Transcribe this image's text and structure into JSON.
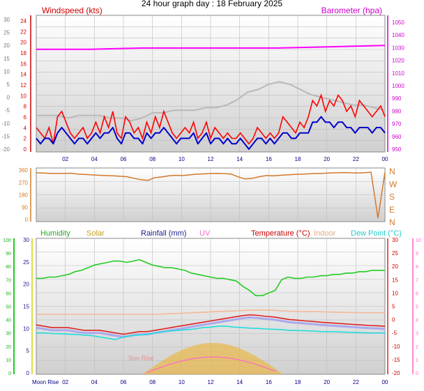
{
  "title": "24 hour graph day : 18 February 2025",
  "x_ticks": [
    "02",
    "04",
    "06",
    "08",
    "10",
    "12",
    "14",
    "16",
    "18",
    "20",
    "22",
    "00"
  ],
  "moon_rise_label": "Moon Rise",
  "sun_rise_label": "Sun Rise",
  "colors": {
    "windspeed": "#ff0000",
    "average": "#0000cc",
    "gray_series": "#b8b8b8",
    "barometer": "#ff00ff",
    "direction": "#d27a2a",
    "humidity": "#22cc22",
    "solar": "#f0b020",
    "rainfall": "#1a1a8c",
    "uv": "#ff66cc",
    "temperature": "#dd2222",
    "indoor": "#f5b89a",
    "dew_point": "#22dddd",
    "temp_light": "#aaaaee"
  },
  "chart_data": [
    {
      "type": "line",
      "name": "wind-panel",
      "left_axis_label": "Windspeed (kts)",
      "right_axis_label": "Barometer (hpa)",
      "left_ticks_wind": [
        "24",
        "22",
        "20",
        "18",
        "16",
        "14",
        "12",
        "10",
        "8",
        "6",
        "4",
        "2",
        "0"
      ],
      "left_ticks_outer": [
        "30",
        "25",
        "20",
        "15",
        "10",
        "5",
        "0",
        "-5",
        "-10",
        "-15",
        "-20"
      ],
      "right_ticks": [
        "1050",
        "1040",
        "1030",
        "1020",
        "1010",
        "1000",
        "990",
        "980",
        "970",
        "960",
        "950"
      ],
      "x_hours": [
        0,
        2,
        4,
        6,
        8,
        10,
        12,
        14,
        16,
        18,
        20,
        22,
        24
      ],
      "wind_speed": [
        4,
        3,
        2,
        4,
        1,
        6,
        7,
        5,
        3,
        2,
        3,
        4,
        2,
        3,
        5,
        3,
        6,
        4,
        7,
        3,
        2,
        6,
        5,
        3,
        4,
        2,
        5,
        3,
        6,
        4,
        7,
        5,
        3,
        2,
        3,
        4,
        3,
        5,
        2,
        3,
        5,
        2,
        4,
        3,
        2,
        3,
        2,
        2,
        3,
        2,
        1,
        2,
        4,
        3,
        2,
        3,
        2,
        3,
        6,
        5,
        4,
        3,
        5,
        4,
        6,
        9,
        8,
        10,
        7,
        9,
        8,
        10,
        9,
        7,
        8,
        6,
        9,
        8,
        7,
        6,
        7,
        8,
        6
      ],
      "wind_avg": [
        2,
        1,
        2,
        2,
        1,
        3,
        4,
        3,
        2,
        1,
        2,
        2,
        1,
        2,
        3,
        2,
        3,
        3,
        4,
        2,
        1,
        3,
        3,
        2,
        2,
        1,
        3,
        2,
        3,
        3,
        4,
        3,
        2,
        1,
        2,
        2,
        2,
        3,
        1,
        2,
        3,
        1,
        2,
        2,
        1,
        2,
        1,
        1,
        2,
        1,
        0,
        1,
        2,
        2,
        1,
        2,
        1,
        2,
        3,
        3,
        2,
        2,
        3,
        3,
        3,
        5,
        5,
        6,
        5,
        5,
        4,
        5,
        5,
        4,
        4,
        3,
        4,
        4,
        4,
        3,
        4,
        4,
        3
      ],
      "gray": [
        -7,
        -7,
        -7,
        -8,
        -7,
        -7,
        -7,
        -8,
        -8,
        -9,
        -8,
        -6,
        -6,
        -5,
        -5,
        -5,
        -4,
        -4,
        -3,
        -1,
        2,
        3,
        5,
        6,
        5,
        3,
        1,
        0,
        -1,
        -2,
        -3,
        -3,
        -4,
        -5
      ],
      "barometer": [
        1027,
        1027,
        1027,
        1027.5,
        1028,
        1028,
        1028,
        1028,
        1028,
        1028,
        1028.5,
        1029,
        1029.5,
        1030
      ]
    },
    {
      "type": "scatter",
      "name": "direction-panel",
      "left_ticks": [
        "360",
        "270",
        "180",
        "90",
        "0"
      ],
      "right_compass": [
        "N",
        "W",
        "S",
        "E",
        "N"
      ],
      "direction": [
        340,
        338,
        336,
        335,
        336,
        337,
        330,
        328,
        325,
        322,
        320,
        318,
        315,
        312,
        300,
        290,
        285,
        305,
        310,
        318,
        322,
        320,
        325,
        330,
        332,
        335,
        336,
        334,
        330,
        310,
        295,
        300,
        312,
        320,
        318,
        322,
        325,
        328,
        330,
        332,
        335,
        336,
        338,
        340,
        342,
        340,
        338,
        340,
        345,
        10,
        345
      ]
    },
    {
      "type": "line",
      "name": "temperature-panel",
      "legend": [
        "Humidity",
        "Solar",
        "Rainfall (mm)",
        "UV",
        "Temperature (°C)",
        "Indoor",
        "Dew Point (°C)"
      ],
      "humidity_ticks": [
        "100",
        "90",
        "80",
        "70",
        "60",
        "50",
        "40",
        "30",
        "20",
        "10",
        "0"
      ],
      "rainfall_ticks": [
        "30",
        "25",
        "20",
        "15",
        "10",
        "5",
        "0"
      ],
      "temp_ticks": [
        "30",
        "25",
        "20",
        "15",
        "10",
        "5",
        "0",
        "-5",
        "-10",
        "-15",
        "-20"
      ],
      "uv_ticks": [
        "10",
        "9",
        "8",
        "7",
        "6",
        "5",
        "4",
        "3",
        "2",
        "1",
        "0"
      ],
      "humidity": [
        71,
        71,
        72,
        72,
        73,
        74,
        76,
        77,
        79,
        81,
        82,
        83,
        84,
        84,
        83,
        84,
        85,
        83,
        81,
        80,
        79,
        79,
        78,
        77,
        75,
        74,
        73,
        72,
        71,
        71,
        70,
        69,
        65,
        62,
        58,
        58,
        60,
        62,
        70,
        72,
        71,
        71,
        72,
        72,
        73,
        73,
        74,
        74,
        75,
        75,
        76,
        76,
        77,
        77,
        77
      ],
      "temperature": [
        -2,
        -2.5,
        -3,
        -3,
        -3,
        -3.5,
        -4,
        -4,
        -4,
        -4.5,
        -5,
        -5.5,
        -5,
        -4.5,
        -4.5,
        -4,
        -3.5,
        -3,
        -2.5,
        -2,
        -1.5,
        -1,
        -0.5,
        0,
        0.5,
        1,
        1.5,
        1.8,
        1.6,
        1.2,
        1,
        0.5,
        0,
        -0.2,
        -0.5,
        -0.7,
        -1,
        -1.2,
        -1.4,
        -1.6,
        -1.8,
        -2,
        -2.2,
        -2.3,
        -2.5
      ],
      "dew_point": [
        -5,
        -5,
        -5.2,
        -5.3,
        -5.5,
        -5.6,
        -5.8,
        -6,
        -6.5,
        -7,
        -7.5,
        -6.5,
        -6,
        -5.8,
        -5.5,
        -5,
        -4.5,
        -4.3,
        -4,
        -3.8,
        -3.5,
        -3,
        -2.8,
        -2.5,
        -2.5,
        -2.8,
        -3,
        -3.2,
        -3.3,
        -3.5,
        -3.6,
        -3.8,
        -4,
        -4.1,
        -4.2,
        -4.3,
        -4.5,
        -4.5,
        -4.6,
        -4.7,
        -4.8,
        -4.9,
        -5,
        -5,
        -5
      ],
      "indoor": [
        2,
        2,
        2,
        2,
        2,
        2,
        2,
        2,
        2,
        2,
        2,
        2.2,
        2.4,
        2.6,
        2.8,
        3,
        3.2,
        3.4,
        3.6,
        3.6,
        3.4,
        3.2,
        3,
        3,
        2.9,
        2.8,
        2.7,
        2.6,
        2.6,
        2.6
      ],
      "solar_peak_hour": 12.2,
      "solar_rise_hour": 7.3,
      "solar_set_hour": 17.0
    }
  ]
}
